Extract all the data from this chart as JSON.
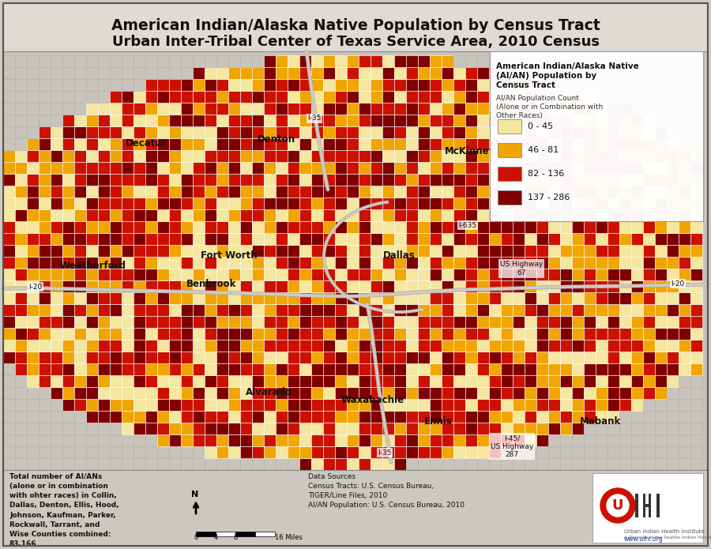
{
  "title_line1": "American Indian/Alaska Native Population by Census Tract",
  "title_line2": "Urban Inter-Tribal Center of Texas Service Area, 2010 Census",
  "title_fontsize": 13.5,
  "legend_title_line1": "American Indian/Alaska Native",
  "legend_title_line2": "(AI/AN) Population by",
  "legend_title_line3": "Census Tract",
  "legend_subtitle1": "AI/AN Population Count",
  "legend_subtitle2": "(Alone or in Combination with",
  "legend_subtitle3": "Other Races)",
  "legend_colors": [
    "#f5e6a0",
    "#f0a500",
    "#cc1100",
    "#800000"
  ],
  "legend_labels": [
    "0 - 45",
    "46 - 81",
    "82 - 136",
    "137 - 286"
  ],
  "bottom_left_text": "Total number of AI/ANs\n(alone or in combination\nwith ohter races) in Collin,\nDallas, Denton, Ellis, Hood,\nJohnson, Kaufman, Parker,\nRockwall, Tarrant, and\nWise Counties combined:\n83,166",
  "data_sources_text": "Data Sources\nCensus Tracts: U.S. Census Bureau,\nTIGER/Line Files, 2010\nAI/AN Population: U.S. Census Bureau, 2010",
  "map_bg": "#c8c3bb",
  "outer_bg": "#d0ccc5",
  "title_bg": "#dedad4",
  "bottom_bg": "#ccc8c0"
}
